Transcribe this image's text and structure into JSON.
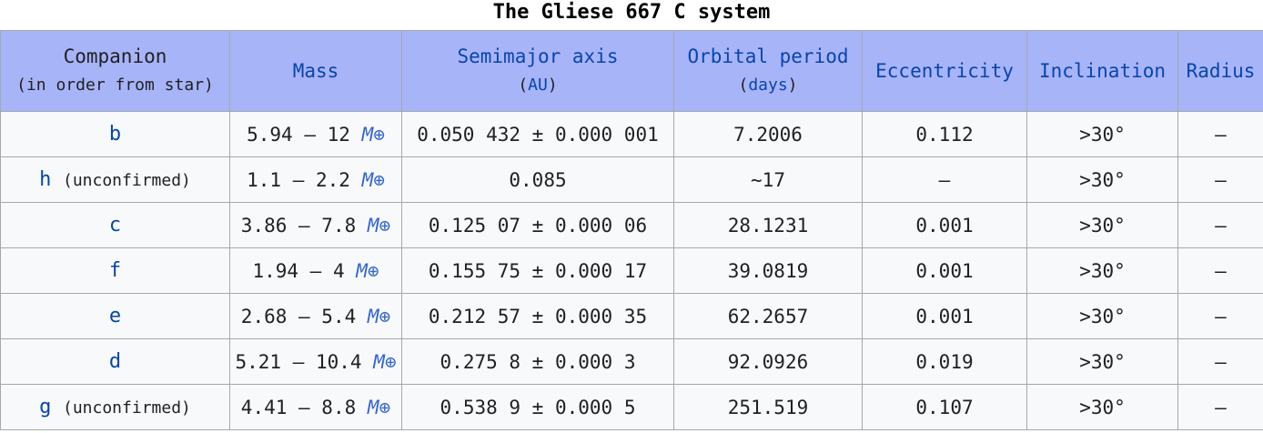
{
  "caption": "The Gliese 667 C system",
  "headers": {
    "companion": "Companion",
    "companion_sub": "(in order from star)",
    "mass": "Mass",
    "semimajor": "Semimajor axis",
    "semimajor_open": "(",
    "semimajor_unit": "AU",
    "semimajor_close": ")",
    "period": "Orbital period",
    "period_open": "(",
    "period_unit": "days",
    "period_close": ")",
    "eccentricity": "Eccentricity",
    "inclination": "Inclination",
    "radius": "Radius"
  },
  "mass_unit": "M⊕",
  "rows": [
    {
      "name": "b",
      "note": "",
      "mass": "5.94 – 12",
      "axis": "0.050 432 ± 0.000 001",
      "period": "7.2006",
      "ecc": "0.112",
      "incl": ">30°",
      "radius": "—"
    },
    {
      "name": "h",
      "note": "(unconfirmed)",
      "mass": "1.1 – 2.2",
      "axis": "0.085",
      "period": "~17",
      "ecc": "—",
      "incl": ">30°",
      "radius": "—"
    },
    {
      "name": "c",
      "note": "",
      "mass": "3.86 – 7.8",
      "axis": "0.125 07 ± 0.000 06",
      "period": "28.1231",
      "ecc": "0.001",
      "incl": ">30°",
      "radius": "—"
    },
    {
      "name": "f",
      "note": "",
      "mass": "1.94 – 4",
      "axis": "0.155 75 ± 0.000 17",
      "period": "39.0819",
      "ecc": "0.001",
      "incl": ">30°",
      "radius": "—"
    },
    {
      "name": "e",
      "note": "",
      "mass": "2.68 – 5.4",
      "axis": "0.212 57 ± 0.000 35",
      "period": "62.2657",
      "ecc": "0.001",
      "incl": ">30°",
      "radius": "—"
    },
    {
      "name": "d",
      "note": "",
      "mass": "5.21 – 10.4",
      "axis": "0.275 8 ± 0.000 3",
      "period": "92.0926",
      "ecc": "0.019",
      "incl": ">30°",
      "radius": "—"
    },
    {
      "name": "g",
      "note": "(unconfirmed)",
      "mass": "4.41 – 8.8",
      "axis": "0.538 9 ± 0.000 5",
      "period": "251.519",
      "ecc": "0.107",
      "incl": ">30°",
      "radius": "—"
    }
  ]
}
